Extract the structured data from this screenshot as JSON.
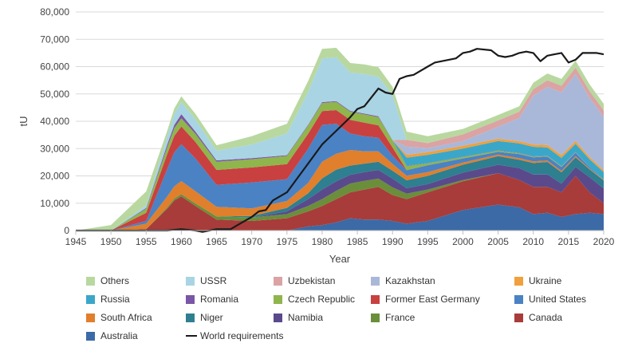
{
  "chart_data": {
    "type": "area",
    "stacked": true,
    "title": "",
    "xlabel": "Year",
    "ylabel": "tU",
    "xlim": [
      1945,
      2020
    ],
    "ylim": [
      0,
      80000
    ],
    "x_ticks": [
      1945,
      1950,
      1955,
      1960,
      1965,
      1970,
      1975,
      1980,
      1985,
      1990,
      1995,
      2000,
      2005,
      2010,
      2015,
      2020
    ],
    "y_ticks": [
      0,
      10000,
      20000,
      30000,
      40000,
      50000,
      60000,
      70000,
      80000
    ],
    "y_tick_labels": [
      "0",
      "10,000",
      "20,000",
      "30,000",
      "40,000",
      "50,000",
      "60,000",
      "70,000",
      "80,000"
    ],
    "x": [
      1945,
      1950,
      1955,
      1958,
      1959,
      1960,
      1962,
      1965,
      1970,
      1975,
      1978,
      1980,
      1982,
      1984,
      1986,
      1988,
      1990,
      1992,
      1995,
      2000,
      2005,
      2008,
      2010,
      2012,
      2014,
      2016,
      2018,
      2020
    ],
    "series": [
      {
        "name": "Australia",
        "color": "#3b6aa6",
        "values": [
          0,
          0,
          0,
          0,
          0,
          0,
          0,
          0,
          0,
          0,
          1500,
          2000,
          3000,
          4500,
          4000,
          4000,
          3500,
          2500,
          3500,
          7500,
          9500,
          8500,
          6000,
          6500,
          5000,
          6000,
          6500,
          6000
        ]
      },
      {
        "name": "Canada",
        "color": "#a83c3a",
        "values": [
          0,
          0,
          500,
          8000,
          11000,
          12500,
          9000,
          4000,
          3500,
          4500,
          5500,
          7000,
          8500,
          9500,
          11000,
          12000,
          9500,
          9000,
          10500,
          10500,
          11500,
          10000,
          10000,
          9500,
          9000,
          14000,
          7500,
          4000
        ]
      },
      {
        "name": "France",
        "color": "#6b8e3a",
        "values": [
          0,
          0,
          0,
          500,
          700,
          800,
          900,
          1200,
          1300,
          1500,
          2000,
          2500,
          3000,
          3200,
          3200,
          3000,
          2800,
          2000,
          1000,
          500,
          0,
          0,
          0,
          0,
          0,
          0,
          0,
          0
        ]
      },
      {
        "name": "Namibia",
        "color": "#5a4a8c",
        "values": [
          0,
          0,
          0,
          0,
          0,
          0,
          0,
          0,
          0,
          1000,
          2500,
          3500,
          3500,
          3200,
          3200,
          3200,
          3200,
          2000,
          2000,
          2700,
          3100,
          4400,
          4500,
          4500,
          3200,
          3300,
          5500,
          5400
        ]
      },
      {
        "name": "Niger",
        "color": "#2e7f8f",
        "values": [
          0,
          0,
          0,
          0,
          0,
          0,
          0,
          0,
          500,
          1300,
          2100,
          4100,
          4300,
          3400,
          3100,
          3000,
          2900,
          2900,
          3000,
          2900,
          3100,
          3000,
          4200,
          4600,
          4100,
          3500,
          2900,
          2900
        ]
      },
      {
        "name": "South Africa",
        "color": "#e07f2c",
        "values": [
          0,
          0,
          2000,
          4000,
          4500,
          4800,
          4500,
          3500,
          2800,
          2500,
          3800,
          6100,
          5800,
          5700,
          4500,
          3800,
          2500,
          1700,
          1400,
          800,
          600,
          600,
          600,
          500,
          500,
          400,
          300,
          300
        ]
      },
      {
        "name": "United States",
        "color": "#4a82c4",
        "values": [
          0,
          0,
          1000,
          10000,
          12500,
          13500,
          12000,
          8000,
          9500,
          8000,
          12500,
          13500,
          11000,
          6000,
          5500,
          5000,
          3000,
          2000,
          2500,
          1500,
          1000,
          1500,
          1500,
          1500,
          1500,
          1300,
          500,
          0
        ]
      },
      {
        "name": "Former East Germany",
        "color": "#c94040",
        "values": [
          0,
          0,
          3000,
          5500,
          6000,
          6500,
          6000,
          5500,
          5500,
          5500,
          5500,
          5000,
          5000,
          5000,
          5000,
          4500,
          3000,
          0,
          0,
          0,
          0,
          0,
          0,
          0,
          0,
          0,
          0,
          0
        ]
      },
      {
        "name": "Czech Republic",
        "color": "#8fb54c",
        "values": [
          0,
          0,
          1500,
          2500,
          2800,
          3000,
          3000,
          3000,
          3000,
          3000,
          3000,
          3000,
          3000,
          3000,
          3000,
          3000,
          2500,
          1500,
          700,
          500,
          400,
          300,
          250,
          200,
          200,
          150,
          0,
          0
        ]
      },
      {
        "name": "Romania",
        "color": "#7a56a6",
        "values": [
          0,
          0,
          300,
          1000,
          1200,
          1500,
          800,
          500,
          400,
          300,
          300,
          300,
          300,
          300,
          300,
          300,
          200,
          100,
          100,
          100,
          100,
          100,
          100,
          100,
          100,
          100,
          0,
          0
        ]
      },
      {
        "name": "Russia",
        "color": "#3aa7c9",
        "values": [
          0,
          0,
          0,
          0,
          0,
          0,
          0,
          0,
          0,
          0,
          0,
          0,
          0,
          0,
          0,
          0,
          0,
          3000,
          3000,
          3000,
          3500,
          3500,
          3500,
          3000,
          3000,
          3000,
          2900,
          2800
        ]
      },
      {
        "name": "Ukraine",
        "color": "#f0a03c",
        "values": [
          0,
          0,
          0,
          0,
          0,
          0,
          0,
          0,
          0,
          0,
          0,
          0,
          0,
          0,
          0,
          0,
          0,
          1000,
          1000,
          1000,
          800,
          800,
          850,
          900,
          1000,
          1000,
          800,
          700
        ]
      },
      {
        "name": "Kazakhstan",
        "color": "#a9b8d9",
        "values": [
          0,
          0,
          0,
          0,
          0,
          0,
          0,
          0,
          0,
          0,
          0,
          0,
          0,
          0,
          0,
          0,
          0,
          3000,
          1500,
          1800,
          4400,
          8500,
          17800,
          21300,
          23000,
          24500,
          21700,
          19500
        ]
      },
      {
        "name": "Uzbekistan",
        "color": "#dba3a3",
        "values": [
          0,
          0,
          0,
          0,
          0,
          0,
          0,
          0,
          0,
          0,
          0,
          0,
          0,
          0,
          0,
          0,
          0,
          2500,
          1800,
          2400,
          2300,
          2300,
          2400,
          2400,
          2400,
          2400,
          2400,
          2400
        ]
      },
      {
        "name": "USSR",
        "color": "#a9d4e3",
        "values": [
          0,
          0,
          1000,
          3000,
          4000,
          4500,
          4500,
          3500,
          5000,
          8000,
          12000,
          16000,
          16000,
          14000,
          14500,
          14500,
          16500,
          0,
          0,
          0,
          0,
          0,
          0,
          0,
          0,
          0,
          0,
          0
        ]
      },
      {
        "name": "Others",
        "color": "#b8d8a0",
        "values": [
          0,
          2000,
          5000,
          2000,
          2000,
          2000,
          2000,
          2000,
          3000,
          3500,
          4000,
          3500,
          3500,
          3500,
          3500,
          3500,
          3000,
          3000,
          2500,
          2000,
          2000,
          2000,
          2400,
          2500,
          2500,
          2500,
          2500,
          2400
        ]
      }
    ],
    "world_requirements": {
      "name": "World requirements",
      "color": "#1a1a1a",
      "x": [
        1945,
        1958,
        1960,
        1962,
        1963,
        1965,
        1967,
        1968,
        1970,
        1971,
        1972,
        1973,
        1975,
        1978,
        1980,
        1982,
        1984,
        1985,
        1986,
        1988,
        1989,
        1990,
        1991,
        1992,
        1993,
        1995,
        1996,
        1997,
        1998,
        1999,
        2000,
        2001,
        2002,
        2004,
        2005,
        2006,
        2007,
        2008,
        2009,
        2010,
        2011,
        2012,
        2013,
        2014,
        2015,
        2016,
        2017,
        2018,
        2019,
        2020
      ],
      "values": [
        0,
        0,
        500,
        0,
        -500,
        500,
        500,
        2000,
        5000,
        7000,
        7500,
        11000,
        14000,
        24500,
        31500,
        36500,
        41500,
        44500,
        45500,
        52000,
        50500,
        50000,
        55500,
        56500,
        57000,
        60000,
        61500,
        62000,
        62500,
        63000,
        65000,
        65500,
        66500,
        66000,
        64000,
        63500,
        64000,
        65000,
        65500,
        65000,
        62000,
        64000,
        64500,
        65000,
        61500,
        62500,
        65000,
        65000,
        65000,
        64500
      ]
    },
    "legend": {
      "placement": "bottom",
      "entries": [
        {
          "label": "Others",
          "color": "#b8d8a0",
          "kind": "box"
        },
        {
          "label": "USSR",
          "color": "#a9d4e3",
          "kind": "box"
        },
        {
          "label": "Uzbekistan",
          "color": "#dba3a3",
          "kind": "box"
        },
        {
          "label": "Kazakhstan",
          "color": "#a9b8d9",
          "kind": "box"
        },
        {
          "label": "Ukraine",
          "color": "#f0a03c",
          "kind": "box"
        },
        {
          "label": "Russia",
          "color": "#3aa7c9",
          "kind": "box"
        },
        {
          "label": "Romania",
          "color": "#7a56a6",
          "kind": "box"
        },
        {
          "label": "Czech Republic",
          "color": "#8fb54c",
          "kind": "box"
        },
        {
          "label": "Former East Germany",
          "color": "#c94040",
          "kind": "box"
        },
        {
          "label": "United States",
          "color": "#4a82c4",
          "kind": "box"
        },
        {
          "label": "South Africa",
          "color": "#e07f2c",
          "kind": "box"
        },
        {
          "label": "Niger",
          "color": "#2e7f8f",
          "kind": "box"
        },
        {
          "label": "Namibia",
          "color": "#5a4a8c",
          "kind": "box"
        },
        {
          "label": "France",
          "color": "#6b8e3a",
          "kind": "box"
        },
        {
          "label": "Canada",
          "color": "#a83c3a",
          "kind": "box"
        },
        {
          "label": "Australia",
          "color": "#3b6aa6",
          "kind": "box"
        },
        {
          "label": "World requirements",
          "color": "#1a1a1a",
          "kind": "line"
        }
      ]
    },
    "grid": {
      "y": true,
      "x": false,
      "color": "#d9d9d9"
    }
  }
}
